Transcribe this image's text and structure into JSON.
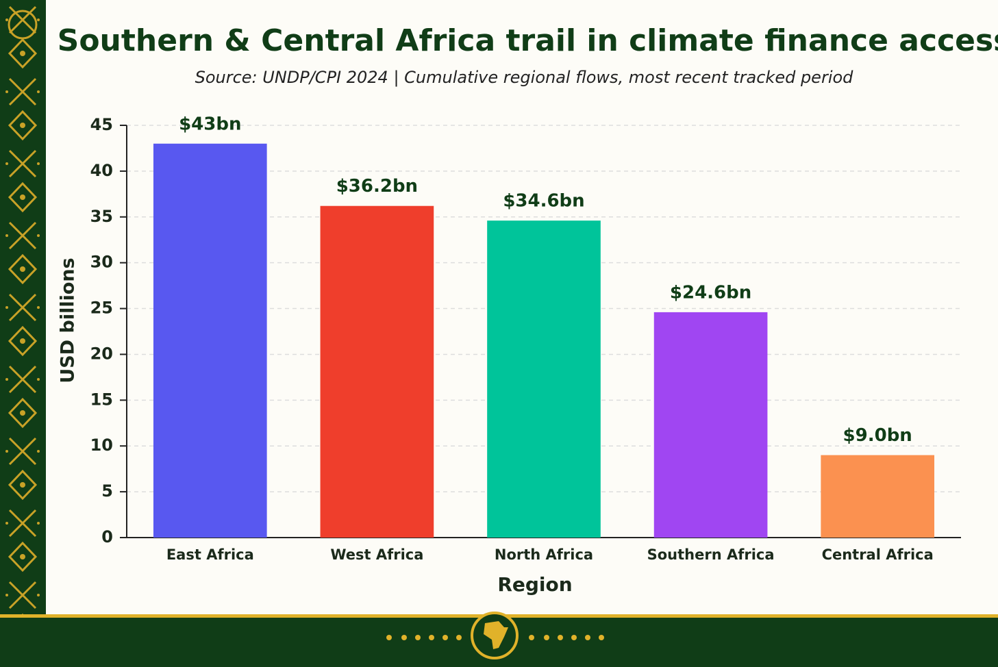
{
  "chart_data": {
    "type": "bar",
    "title": "Southern & Central Africa trail in climate finance access",
    "subtitle": "Source: UNDP/CPI 2024 | Cumulative regional flows, most recent tracked period",
    "x_label": "Region",
    "y_label": "USD billions",
    "categories": [
      "East Africa",
      "West Africa",
      "North Africa",
      "Southern Africa",
      "Central Africa"
    ],
    "values": [
      43,
      36.2,
      34.6,
      24.6,
      9.0
    ],
    "value_labels": [
      "$43bn",
      "$36.2bn",
      "$34.6bn",
      "$24.6bn",
      "$9.0bn"
    ],
    "colors": [
      "#5858f0",
      "#ef3e2c",
      "#00c49a",
      "#a046f2",
      "#fb9150"
    ],
    "ylim": [
      0,
      45
    ],
    "yticks": [
      0,
      5,
      10,
      15,
      20,
      25,
      30,
      35,
      40,
      45
    ],
    "grid": true
  }
}
